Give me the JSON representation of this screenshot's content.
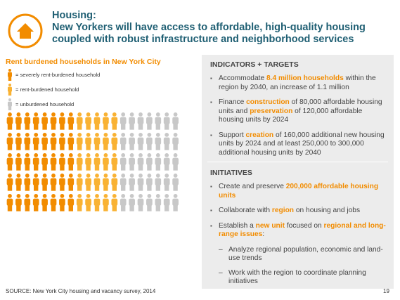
{
  "header": {
    "title_lines": [
      "Housing:",
      "New Yorkers will have access to affordable, high-quality housing",
      "coupled with robust infrastructure and neighborhood services"
    ]
  },
  "infographic": {
    "title": "Rent burdened households in New York City",
    "items": [
      {
        "label": "= severely rent-burdened household",
        "color": "#f28c00",
        "count": 40
      },
      {
        "label": "= rent-burdened household",
        "color": "#f9b233",
        "count": 25
      },
      {
        "label": "= unburdened household",
        "color": "#c8c8c8",
        "count": 35
      }
    ]
  },
  "indicators": {
    "heading": "INDICATORS + TARGETS",
    "bullets": [
      [
        {
          "t": "Accommodate "
        },
        {
          "t": "8.4 million households",
          "em": true
        },
        {
          "t": " within the region by 2040, an increase of 1.1 million"
        }
      ],
      [
        {
          "t": "Finance "
        },
        {
          "t": "construction",
          "em": true
        },
        {
          "t": " of 80,000 affordable housing units and "
        },
        {
          "t": "preservation",
          "em": true
        },
        {
          "t": " of 120,000 affordable housing units by 2024"
        }
      ],
      [
        {
          "t": "Support "
        },
        {
          "t": "creation",
          "em": true
        },
        {
          "t": " of 160,000 additional new housing units by 2024 and at least 250,000 to 300,000 additional housing units by 2040"
        }
      ]
    ]
  },
  "initiatives": {
    "heading": "INITIATIVES",
    "bullets": [
      [
        {
          "t": "Create and preserve "
        },
        {
          "t": "200,000 affordable housing units",
          "em": true
        }
      ],
      [
        {
          "t": "Collaborate with "
        },
        {
          "t": "region",
          "em": true
        },
        {
          "t": " on housing and jobs"
        }
      ],
      [
        {
          "t": "Establish a "
        },
        {
          "t": "new unit",
          "em": true
        },
        {
          "t": " focused on "
        },
        {
          "t": "regional and long-range issues",
          "em": true
        },
        {
          "t": ":"
        }
      ]
    ],
    "sub_bullets": [
      [
        {
          "t": "Analyze regional population, economic and land-use trends"
        }
      ],
      [
        {
          "t": "Work with the region to coordinate planning initiatives"
        }
      ]
    ]
  },
  "footer": {
    "source": "SOURCE: New York City housing and vacancy survey, 2014",
    "page": "19"
  }
}
